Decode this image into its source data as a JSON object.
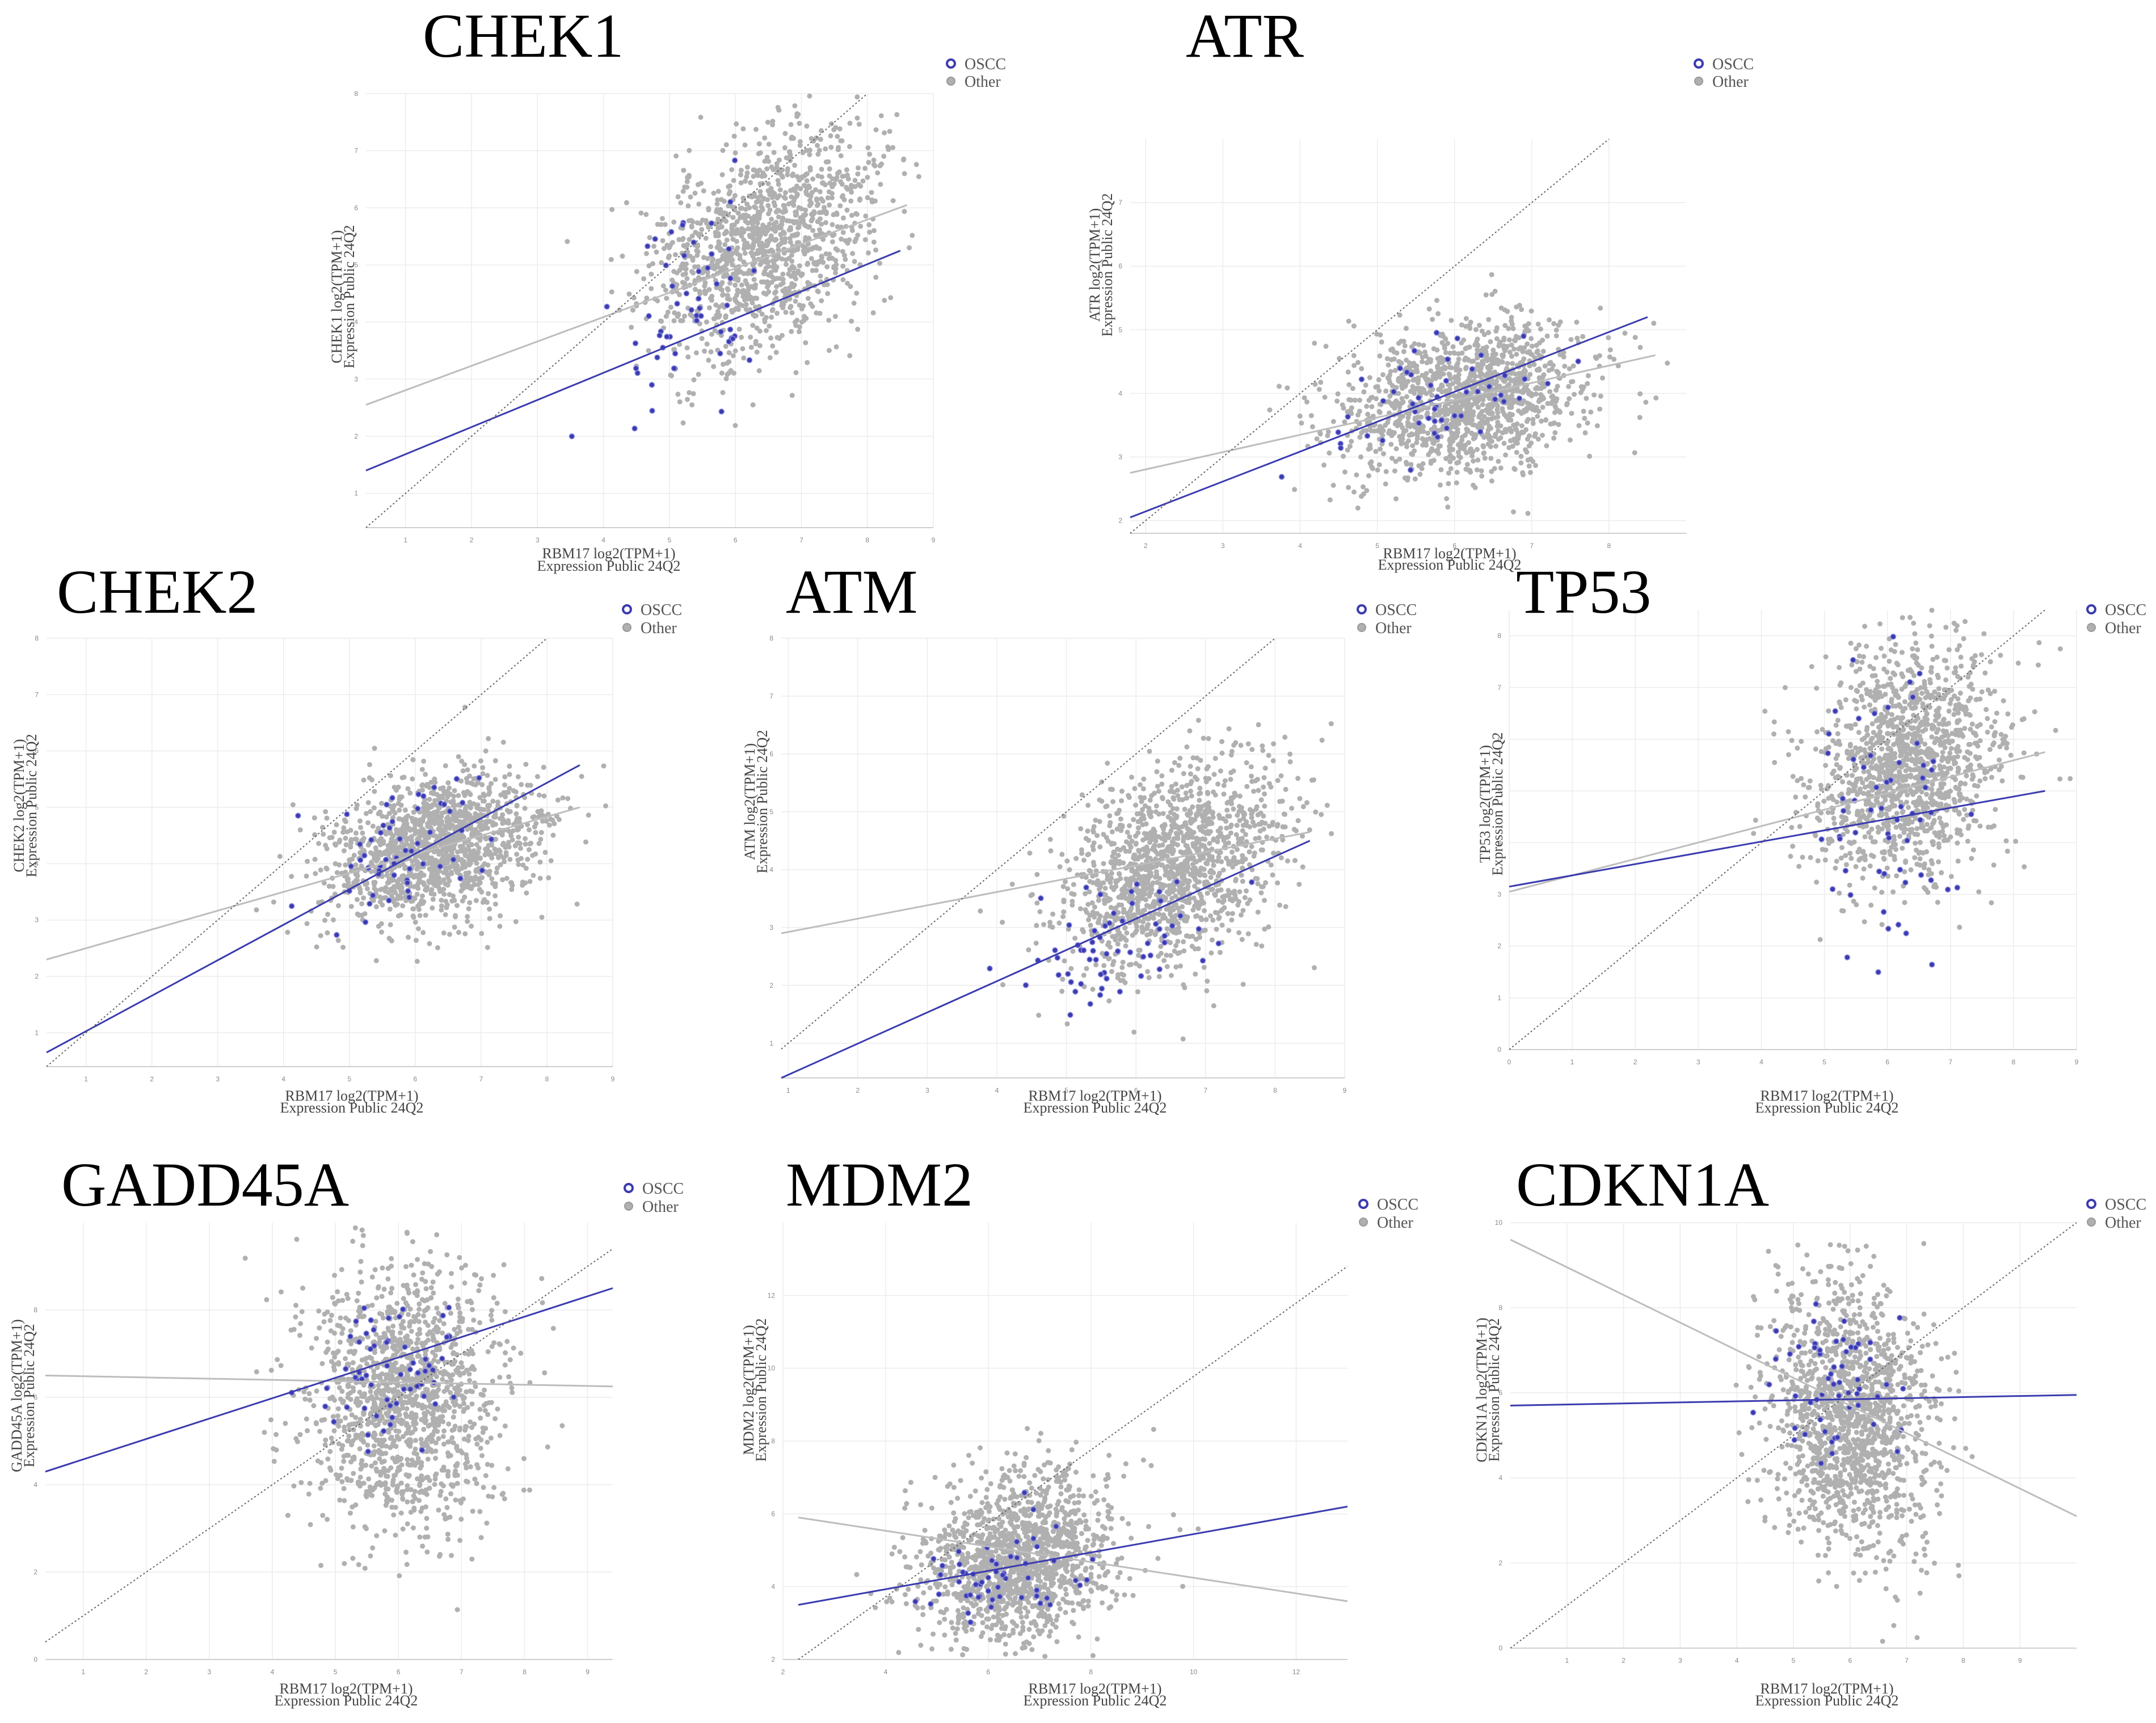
{
  "chart_data": [
    {
      "type": "scatter",
      "title": "CHEK1",
      "seed": 11,
      "xlabel_line1": "RBM17 log2(TPM+1)",
      "xlabel_line2": "Expression Public 24Q2",
      "ylabel_line1": "CHEK1 log2(TPM+1)",
      "ylabel_line2": "Expression Public 24Q2",
      "xlim": [
        0.4,
        9.0
      ],
      "ylim": [
        0.4,
        8.0
      ],
      "xticks": [
        1,
        2,
        3,
        4,
        5,
        6,
        7,
        8,
        9
      ],
      "yticks": [
        1,
        2,
        3,
        4,
        5,
        6,
        7,
        8
      ],
      "legend": [
        {
          "label": "OSCC",
          "color": "#3b3bb0"
        },
        {
          "label": "Other",
          "color": "#b0b0b0"
        }
      ],
      "cloud": {
        "n": 1300,
        "cx": 6.4,
        "cy": 5.4,
        "sx": 0.85,
        "sy": 1.0,
        "rho": 0.38
      },
      "oscc": {
        "n": 55,
        "cx": 5.5,
        "cy": 4.4,
        "sx": 0.6,
        "sy": 1.1,
        "rho": 0.3
      },
      "fits": [
        {
          "series": "Other",
          "x1": 0.4,
          "y1": 2.55,
          "x2": 8.6,
          "y2": 6.05
        },
        {
          "series": "OSCC",
          "x1": 0.4,
          "y1": 1.4,
          "x2": 8.5,
          "y2": 5.25
        },
        {
          "series": "identity",
          "x1": 0.4,
          "y1": 0.4,
          "x2": 8.0,
          "y2": 8.0
        }
      ]
    },
    {
      "type": "scatter",
      "title": "ATR",
      "seed": 22,
      "xlabel_line1": "RBM17 log2(TPM+1)",
      "xlabel_line2": "Expression Public 24Q2",
      "ylabel_line1": "ATR log2(TPM+1)",
      "ylabel_line2": "Expression Public 24Q2",
      "xlim": [
        1.8,
        9.0
      ],
      "ylim": [
        1.8,
        8.0
      ],
      "xticks": [
        2,
        3,
        4,
        5,
        6,
        7,
        8
      ],
      "yticks": [
        2,
        3,
        4,
        5,
        6,
        7
      ],
      "legend": [
        {
          "label": "OSCC",
          "color": "#3b3bb0"
        },
        {
          "label": "Other",
          "color": "#b0b0b0"
        }
      ],
      "cloud": {
        "n": 1400,
        "cx": 6.1,
        "cy": 3.9,
        "sx": 0.8,
        "sy": 0.6,
        "rho": 0.3
      },
      "oscc": {
        "n": 50,
        "cx": 5.6,
        "cy": 3.9,
        "sx": 0.7,
        "sy": 0.5,
        "rho": 0.4
      },
      "fits": [
        {
          "series": "Other",
          "x1": 1.8,
          "y1": 2.75,
          "x2": 8.6,
          "y2": 4.6
        },
        {
          "series": "OSCC",
          "x1": 1.8,
          "y1": 2.05,
          "x2": 8.5,
          "y2": 5.2
        },
        {
          "series": "identity",
          "x1": 1.8,
          "y1": 1.8,
          "x2": 8.0,
          "y2": 8.0
        }
      ]
    },
    {
      "type": "scatter",
      "title": "CHEK2",
      "seed": 33,
      "xlabel_line1": "RBM17 log2(TPM+1)",
      "xlabel_line2": "Expression Public 24Q2",
      "ylabel_line1": "CHEK2 log2(TPM+1)",
      "ylabel_line2": "Expression Public 24Q2",
      "xlim": [
        0.4,
        9.0
      ],
      "ylim": [
        0.4,
        8.0
      ],
      "xticks": [
        1,
        2,
        3,
        4,
        5,
        6,
        7,
        8,
        9
      ],
      "yticks": [
        1,
        2,
        3,
        4,
        5,
        6,
        7,
        8
      ],
      "legend": [
        {
          "label": "OSCC",
          "color": "#3b3bb0"
        },
        {
          "label": "Other",
          "color": "#b0b0b0"
        }
      ],
      "cloud": {
        "n": 1400,
        "cx": 6.3,
        "cy": 4.3,
        "sx": 0.8,
        "sy": 0.65,
        "rho": 0.3
      },
      "oscc": {
        "n": 55,
        "cx": 5.8,
        "cy": 4.2,
        "sx": 0.6,
        "sy": 0.7,
        "rho": 0.4
      },
      "fits": [
        {
          "series": "Other",
          "x1": 0.4,
          "y1": 2.3,
          "x2": 8.5,
          "y2": 5.0
        },
        {
          "series": "OSCC",
          "x1": 0.4,
          "y1": 0.65,
          "x2": 8.5,
          "y2": 5.75
        },
        {
          "series": "identity",
          "x1": 0.4,
          "y1": 0.4,
          "x2": 8.0,
          "y2": 8.0
        }
      ]
    },
    {
      "type": "scatter",
      "title": "ATM",
      "seed": 44,
      "xlabel_line1": "RBM17 log2(TPM+1)",
      "xlabel_line2": "Expression Public 24Q2",
      "ylabel_line1": "ATM log2(TPM+1)",
      "ylabel_line2": "Expression Public 24Q2",
      "xlim": [
        0.9,
        9.0
      ],
      "ylim": [
        0.4,
        8.0
      ],
      "xticks": [
        1,
        2,
        3,
        4,
        5,
        6,
        7,
        8,
        9
      ],
      "yticks": [
        1,
        2,
        3,
        4,
        5,
        6,
        7,
        8
      ],
      "legend": [
        {
          "label": "OSCC",
          "color": "#3b3bb0"
        },
        {
          "label": "Other",
          "color": "#b0b0b0"
        }
      ],
      "cloud": {
        "n": 1400,
        "cx": 6.5,
        "cy": 4.0,
        "sx": 0.8,
        "sy": 0.9,
        "rho": 0.4
      },
      "oscc": {
        "n": 60,
        "cx": 5.7,
        "cy": 2.7,
        "sx": 0.6,
        "sy": 0.6,
        "rho": 0.4
      },
      "fits": [
        {
          "series": "Other",
          "x1": 0.9,
          "y1": 2.9,
          "x2": 8.5,
          "y2": 4.65
        },
        {
          "series": "OSCC",
          "x1": 0.9,
          "y1": 0.4,
          "x2": 8.5,
          "y2": 4.5
        },
        {
          "series": "identity",
          "x1": 0.9,
          "y1": 0.9,
          "x2": 8.0,
          "y2": 8.0
        }
      ]
    },
    {
      "type": "scatter",
      "title": "TP53",
      "seed": 55,
      "xlabel_line1": "RBM17 log2(TPM+1)",
      "xlabel_line2": "Expression Public 24Q2",
      "ylabel_line1": "TP53 log2(TPM+1)",
      "ylabel_line2": "Expression Public 24Q2",
      "xlim": [
        0.0,
        9.0
      ],
      "ylim": [
        0.0,
        8.5
      ],
      "xticks": [
        0,
        1,
        2,
        3,
        4,
        5,
        6,
        7,
        8,
        9
      ],
      "yticks": [
        0,
        1,
        2,
        3,
        4,
        5,
        6,
        7,
        8
      ],
      "legend": [
        {
          "label": "OSCC",
          "color": "#3b3bb0"
        },
        {
          "label": "Other",
          "color": "#b0b0b0"
        }
      ],
      "cloud": {
        "n": 1400,
        "cx": 6.3,
        "cy": 5.5,
        "sx": 0.75,
        "sy": 1.1,
        "rho": 0.15
      },
      "oscc": {
        "n": 60,
        "cx": 5.9,
        "cy": 4.5,
        "sx": 0.6,
        "sy": 1.5,
        "rho": 0.1
      },
      "fits": [
        {
          "series": "Other",
          "x1": 0.0,
          "y1": 3.05,
          "x2": 8.5,
          "y2": 5.75
        },
        {
          "series": "OSCC",
          "x1": 0.0,
          "y1": 3.15,
          "x2": 8.5,
          "y2": 5.0
        },
        {
          "series": "identity",
          "x1": 0.0,
          "y1": 0.0,
          "x2": 8.5,
          "y2": 8.5
        }
      ]
    },
    {
      "type": "scatter",
      "title": "GADD45A",
      "seed": 66,
      "xlabel_line1": "RBM17 log2(TPM+1)",
      "xlabel_line2": "Expression Public 24Q2",
      "ylabel_line1": "GADD45A log2(TPM+1)",
      "ylabel_line2": "Expression Public 24Q2",
      "xlim": [
        0.4,
        9.4
      ],
      "ylim": [
        0.0,
        10.0
      ],
      "xticks": [
        1,
        2,
        3,
        4,
        5,
        6,
        7,
        8,
        9
      ],
      "yticks": [
        0,
        2,
        4,
        6,
        8
      ],
      "legend": [
        {
          "label": "OSCC",
          "color": "#3b3bb0"
        },
        {
          "label": "Other",
          "color": "#b0b0b0"
        }
      ],
      "cloud": {
        "n": 1400,
        "cx": 6.1,
        "cy": 6.0,
        "sx": 0.75,
        "sy": 1.5,
        "rho": 0.0
      },
      "oscc": {
        "n": 60,
        "cx": 5.9,
        "cy": 6.4,
        "sx": 0.6,
        "sy": 1.0,
        "rho": 0.3
      },
      "fits": [
        {
          "series": "Other",
          "x1": 0.4,
          "y1": 6.5,
          "x2": 9.4,
          "y2": 6.25
        },
        {
          "series": "OSCC",
          "x1": 0.4,
          "y1": 4.3,
          "x2": 9.4,
          "y2": 8.5
        },
        {
          "series": "identity",
          "x1": 0.4,
          "y1": 0.4,
          "x2": 9.4,
          "y2": 9.4
        }
      ]
    },
    {
      "type": "scatter",
      "title": "MDM2",
      "seed": 77,
      "xlabel_line1": "RBM17 log2(TPM+1)",
      "xlabel_line2": "Expression Public 24Q2",
      "ylabel_line1": "MDM2 log2(TPM+1)",
      "ylabel_line2": "Expression Public 24Q2",
      "xlim": [
        2.0,
        13.0
      ],
      "ylim": [
        2.0,
        14.0
      ],
      "xticks": [
        2,
        4,
        6,
        8,
        10,
        12
      ],
      "yticks": [
        2,
        4,
        6,
        8,
        10,
        12
      ],
      "legend": [
        {
          "label": "OSCC",
          "color": "#3b3bb0"
        },
        {
          "label": "Other",
          "color": "#b0b0b0"
        }
      ],
      "cloud": {
        "n": 1400,
        "cx": 6.6,
        "cy": 4.8,
        "sx": 0.9,
        "sy": 1.2,
        "rho": 0.15
      },
      "oscc": {
        "n": 55,
        "cx": 6.0,
        "cy": 4.2,
        "sx": 0.8,
        "sy": 0.7,
        "rho": 0.3
      },
      "fits": [
        {
          "series": "Other",
          "x1": 2.3,
          "y1": 5.9,
          "x2": 13.0,
          "y2": 3.6
        },
        {
          "series": "OSCC",
          "x1": 2.3,
          "y1": 3.5,
          "x2": 13.0,
          "y2": 6.2
        },
        {
          "series": "identity",
          "x1": 2.3,
          "y1": 2.0,
          "x2": 13.0,
          "y2": 12.8
        }
      ]
    },
    {
      "type": "scatter",
      "title": "CDKN1A",
      "seed": 88,
      "xlabel_line1": "RBM17 log2(TPM+1)",
      "xlabel_line2": "Expression Public 24Q2",
      "ylabel_line1": "CDKN1A log2(TPM+1)",
      "ylabel_line2": "Expression Public 24Q2",
      "xlim": [
        0.0,
        10.0
      ],
      "ylim": [
        0.0,
        10.0
      ],
      "xticks": [
        1,
        2,
        3,
        4,
        5,
        6,
        7,
        8,
        9
      ],
      "yticks": [
        0,
        2,
        4,
        6,
        8,
        10
      ],
      "legend": [
        {
          "label": "OSCC",
          "color": "#3b3bb0"
        },
        {
          "label": "Other",
          "color": "#b0b0b0"
        }
      ],
      "cloud": {
        "n": 1400,
        "cx": 6.0,
        "cy": 5.4,
        "sx": 0.7,
        "sy": 1.6,
        "rho": -0.1
      },
      "oscc": {
        "n": 55,
        "cx": 5.7,
        "cy": 6.0,
        "sx": 0.6,
        "sy": 0.9,
        "rho": 0.2
      },
      "fits": [
        {
          "series": "Other",
          "x1": 0.0,
          "y1": 9.6,
          "x2": 10.0,
          "y2": 3.1
        },
        {
          "series": "OSCC",
          "x1": 0.0,
          "y1": 5.7,
          "x2": 10.0,
          "y2": 5.95
        },
        {
          "series": "identity",
          "x1": 0.0,
          "y1": 0.0,
          "x2": 10.0,
          "y2": 10.0
        }
      ]
    }
  ]
}
